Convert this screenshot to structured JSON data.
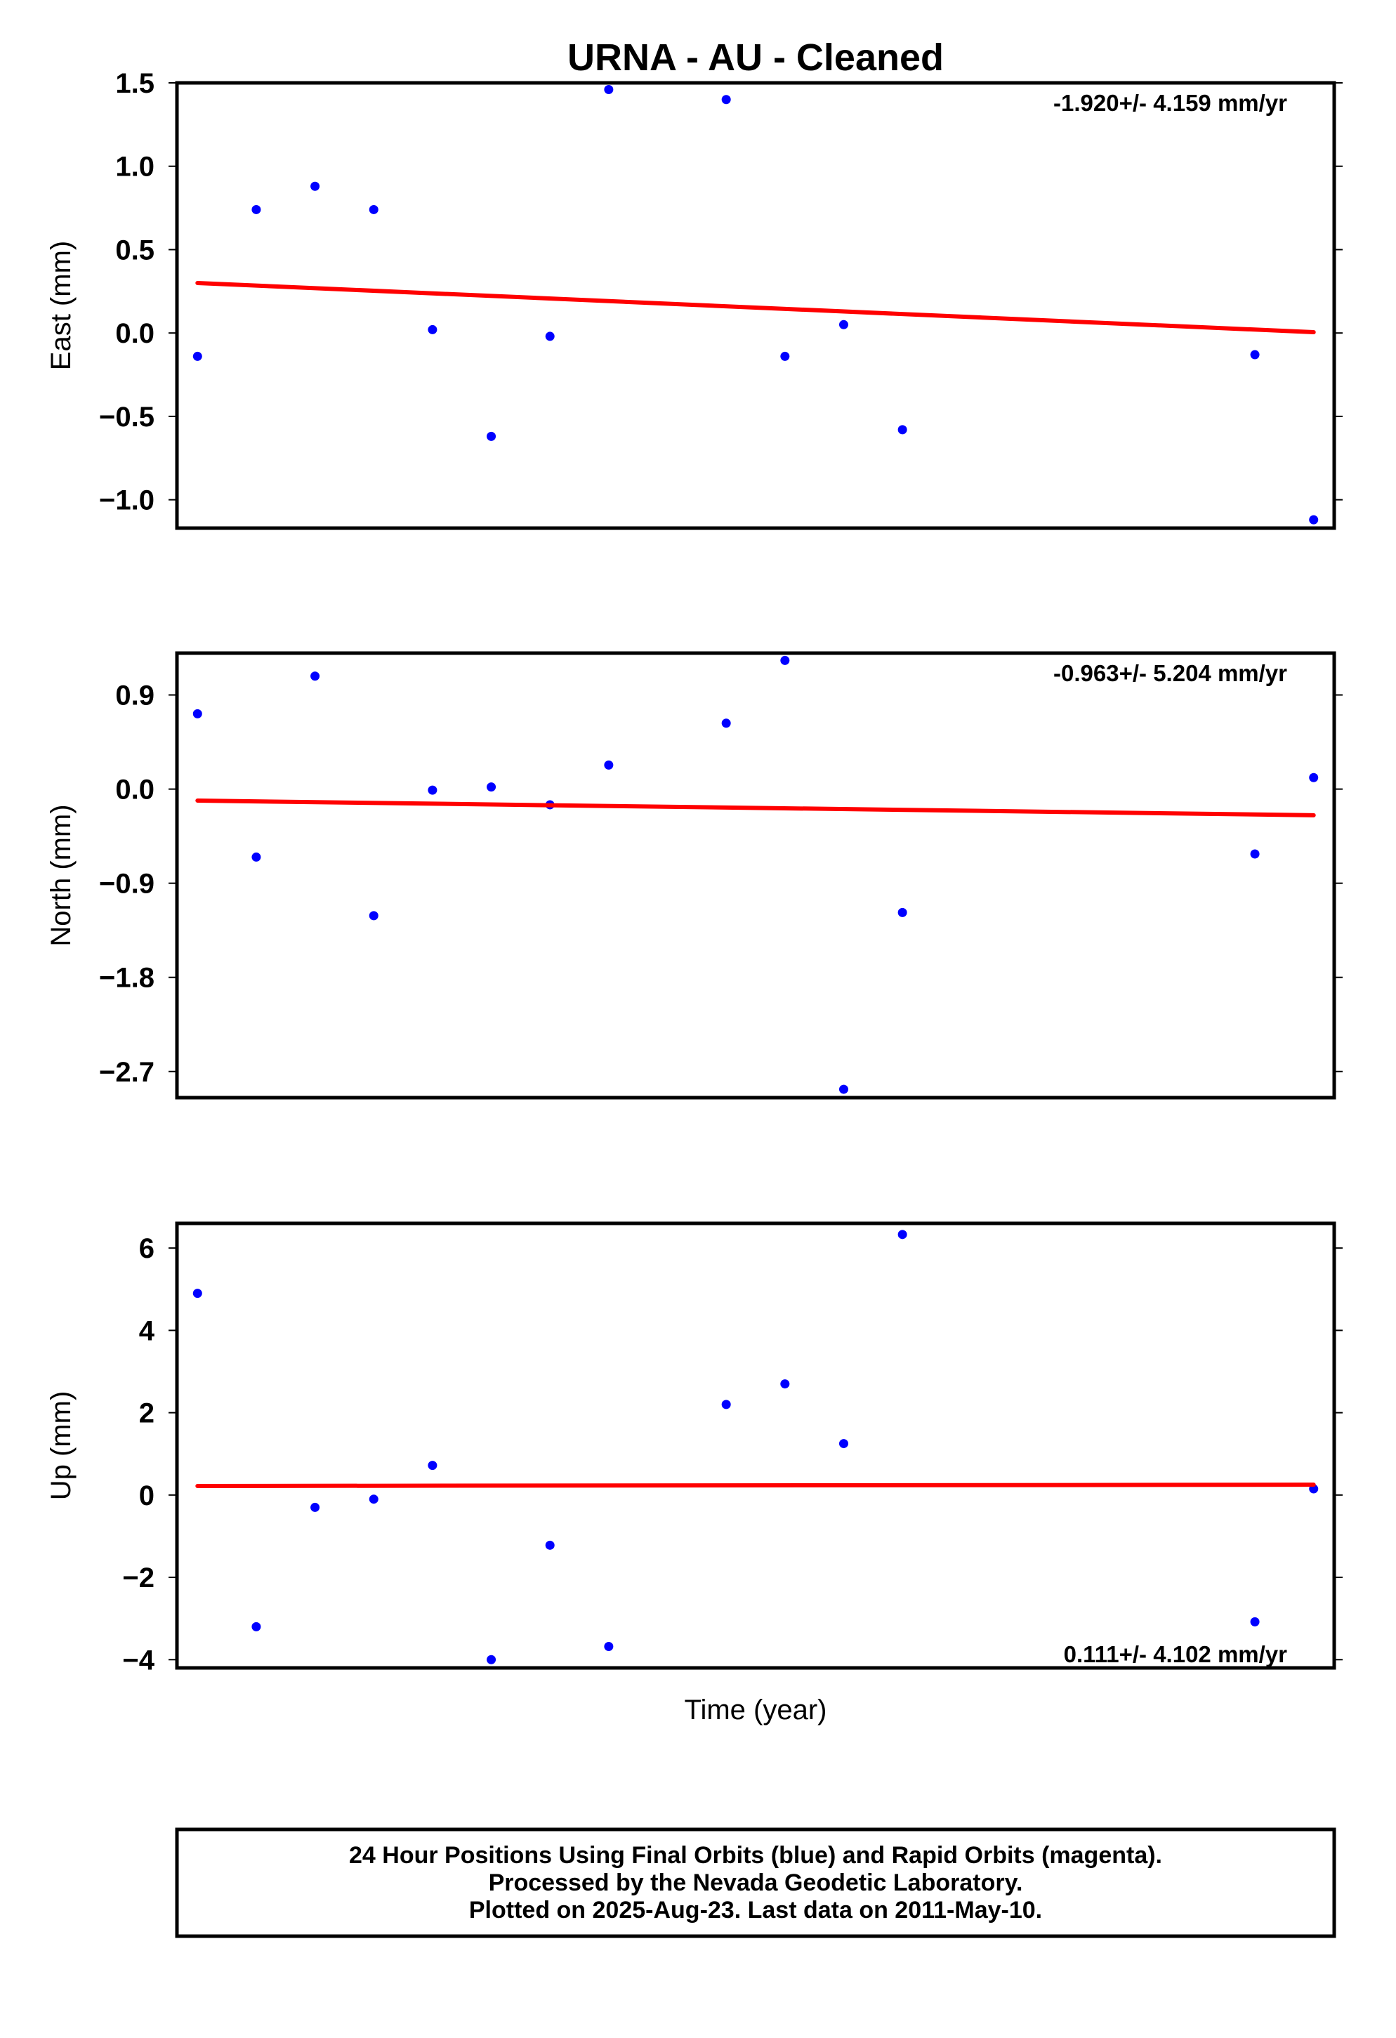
{
  "title": "URNA  - AU - Cleaned",
  "xlabel": "Time (year)",
  "footer": {
    "lines": [
      "24 Hour Positions Using Final Orbits (blue) and Rapid Orbits (magenta).",
      "Processed by the Nevada Geodetic Laboratory.",
      "Plotted on 2025-Aug-23. Last data on 2011-May-10."
    ]
  },
  "colors": {
    "points": "#0000ff",
    "trend": "#ff0000",
    "frame": "#000000"
  },
  "chart_data": [
    {
      "type": "scatter",
      "ylabel": "East (mm)",
      "rate": "-1.920+/- 4.159 mm/yr",
      "rate_position": "top-right",
      "ylim": [
        -1.17,
        1.5
      ],
      "yticks": [
        1.5,
        1.0,
        0.5,
        0.0,
        -0.5,
        -1.0
      ],
      "ytick_labels": [
        "1.5",
        "1.0",
        "0.5",
        "0.0",
        "−0.5",
        "−1.0"
      ],
      "x": [
        0,
        1,
        2,
        3,
        4,
        5,
        6,
        7,
        9,
        10,
        11,
        12,
        18,
        19
      ],
      "y": [
        -0.14,
        0.74,
        0.88,
        0.74,
        0.02,
        -0.62,
        -0.02,
        1.46,
        1.4,
        -0.14,
        0.05,
        -0.58,
        -0.13,
        -1.12
      ],
      "trend": {
        "x": [
          0,
          19
        ],
        "y": [
          0.3,
          0.005
        ]
      }
    },
    {
      "type": "scatter",
      "ylabel": "North (mm)",
      "rate": "-0.963+/- 5.204 mm/yr",
      "rate_position": "top-right",
      "ylim": [
        -2.95,
        1.3
      ],
      "yticks": [
        0.9,
        0.0,
        -0.9,
        -1.8,
        -2.7
      ],
      "ytick_labels": [
        "0.9",
        "0.0",
        "−0.9",
        "−1.8",
        "−2.7"
      ],
      "x": [
        0,
        1,
        2,
        3,
        4,
        5,
        6,
        7,
        9,
        10,
        11,
        12,
        18,
        19
      ],
      "y": [
        0.72,
        -0.65,
        1.08,
        -1.21,
        -0.01,
        0.02,
        -0.15,
        0.23,
        0.63,
        1.23,
        -2.87,
        -1.18,
        -0.62,
        0.11
      ],
      "trend": {
        "x": [
          0,
          19
        ],
        "y": [
          -0.11,
          -0.25
        ]
      }
    },
    {
      "type": "scatter",
      "ylabel": "Up (mm)",
      "rate": "0.111+/- 4.102 mm/yr",
      "rate_position": "bottom-right",
      "ylim": [
        -4.2,
        6.6
      ],
      "yticks": [
        6,
        4,
        2,
        0,
        -2,
        -4
      ],
      "ytick_labels": [
        "6",
        "4",
        "2",
        "0",
        "−2",
        "−4"
      ],
      "x": [
        0,
        1,
        2,
        3,
        4,
        5,
        6,
        7,
        9,
        10,
        11,
        12,
        18,
        19
      ],
      "y": [
        4.9,
        -3.2,
        -0.3,
        -0.1,
        0.72,
        -4.0,
        -1.22,
        -3.68,
        2.2,
        2.7,
        1.25,
        6.33,
        -3.08,
        0.15
      ],
      "trend": {
        "x": [
          0,
          19
        ],
        "y": [
          0.22,
          0.25
        ]
      }
    }
  ]
}
